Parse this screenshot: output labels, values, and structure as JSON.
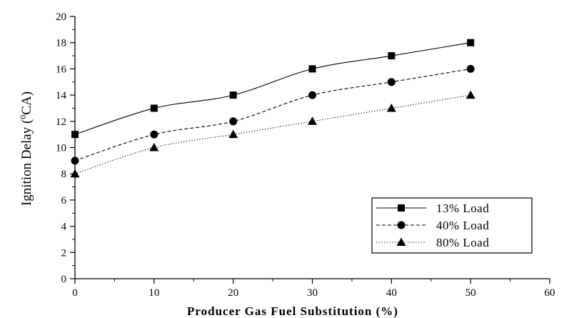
{
  "chart_data": {
    "type": "line",
    "xlabel": "Producer Gas Fuel Substitution (%)",
    "ylabel": "Ignition Delay",
    "ylabel_sup": "0",
    "ylabel_unit": "CA)",
    "xlim": [
      0,
      60
    ],
    "ylim": [
      0,
      20
    ],
    "xticks": [
      "0",
      "10",
      "20",
      "30",
      "40",
      "50",
      "60"
    ],
    "yticks": [
      "0",
      "2",
      "4",
      "6",
      "8",
      "10",
      "12",
      "14",
      "16",
      "18",
      "20"
    ],
    "x": [
      0,
      10,
      20,
      30,
      40,
      50
    ],
    "series": [
      {
        "name": "13% Load",
        "values": [
          11,
          13,
          14,
          16,
          17,
          18
        ],
        "line": "solid",
        "marker": "square"
      },
      {
        "name": "40% Load",
        "values": [
          9,
          11,
          12,
          14,
          15,
          16
        ],
        "line": "dashed",
        "marker": "circle"
      },
      {
        "name": "80% Load",
        "values": [
          8,
          10,
          11,
          12,
          13,
          14
        ],
        "line": "dotted",
        "marker": "triangle"
      }
    ],
    "grid": false,
    "legend_position": "bottom-right"
  }
}
